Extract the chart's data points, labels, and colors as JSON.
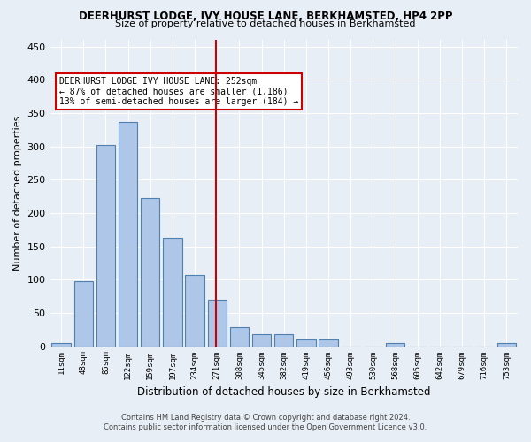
{
  "title1": "DEERHURST LODGE, IVY HOUSE LANE, BERKHAMSTED, HP4 2PP",
  "title2": "Size of property relative to detached houses in Berkhamsted",
  "xlabel": "Distribution of detached houses by size in Berkhamsted",
  "ylabel": "Number of detached properties",
  "footer1": "Contains HM Land Registry data © Crown copyright and database right 2024.",
  "footer2": "Contains public sector information licensed under the Open Government Licence v3.0.",
  "categories": [
    "11sqm",
    "48sqm",
    "85sqm",
    "122sqm",
    "159sqm",
    "197sqm",
    "234sqm",
    "271sqm",
    "308sqm",
    "345sqm",
    "382sqm",
    "419sqm",
    "456sqm",
    "493sqm",
    "530sqm",
    "568sqm",
    "605sqm",
    "642sqm",
    "679sqm",
    "716sqm",
    "753sqm"
  ],
  "values": [
    5,
    97,
    302,
    337,
    222,
    163,
    107,
    70,
    28,
    18,
    18,
    10,
    10,
    0,
    0,
    5,
    0,
    0,
    0,
    0,
    5
  ],
  "bar_color": "#aec6e8",
  "bar_edge_color": "#4f81b0",
  "property_line_x": 6.95,
  "property_size": "252sqm",
  "annotation_title": "DEERHURST LODGE IVY HOUSE LANE: 252sqm",
  "annotation_line1": "← 87% of detached houses are smaller (1,186)",
  "annotation_line2": "13% of semi-detached houses are larger (184) →",
  "annotation_box_color": "#ffffff",
  "annotation_box_edge": "#cc0000",
  "vline_color": "#cc0000",
  "bg_color": "#e8eef5",
  "plot_bg_color": "#e8eef5",
  "ylim": [
    0,
    460
  ],
  "yticks": [
    0,
    50,
    100,
    150,
    200,
    250,
    300,
    350,
    400,
    450
  ]
}
